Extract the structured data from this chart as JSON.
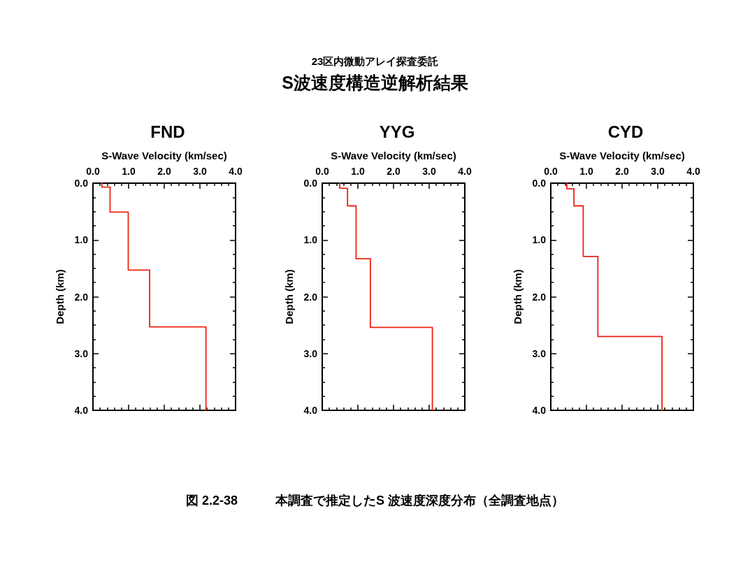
{
  "chart_data": [
    {
      "type": "other",
      "title": "23区内微動アレイ探査委託",
      "subtitle": "S波速度構造逆解析結果"
    },
    {
      "type": "line",
      "title": "FND",
      "xlabel": "S-Wave Velocity (km/sec)",
      "ylabel": "Depth (km)",
      "color": "#ee2211",
      "x": [
        0.25,
        0.25,
        0.48,
        0.48,
        0.99,
        0.99,
        1.59,
        1.59,
        3.17,
        3.17
      ],
      "values": [
        0,
        0.07,
        0.07,
        0.51,
        0.51,
        1.53,
        1.53,
        2.53,
        2.53,
        4.0
      ],
      "xlim": [
        0,
        4
      ],
      "ylim": [
        4,
        0
      ],
      "xticks": [
        {
          "value": 0,
          "label": "0.0"
        },
        {
          "value": 0.2,
          "label": null
        },
        {
          "value": 0.4,
          "label": null
        },
        {
          "value": 0.6,
          "label": null
        },
        {
          "value": 0.8,
          "label": null
        },
        {
          "value": 1,
          "label": "1.0"
        },
        {
          "value": 1.2,
          "label": null
        },
        {
          "value": 1.4,
          "label": null
        },
        {
          "value": 1.6,
          "label": null
        },
        {
          "value": 1.8,
          "label": null
        },
        {
          "value": 2,
          "label": "2.0"
        },
        {
          "value": 2.2,
          "label": null
        },
        {
          "value": 2.4,
          "label": null
        },
        {
          "value": 2.6,
          "label": null
        },
        {
          "value": 2.8,
          "label": null
        },
        {
          "value": 3,
          "label": "3.0"
        },
        {
          "value": 3.2,
          "label": null
        },
        {
          "value": 3.4,
          "label": null
        },
        {
          "value": 3.6,
          "label": null
        },
        {
          "value": 3.8,
          "label": null
        },
        {
          "value": 4,
          "label": "4.0"
        }
      ],
      "yticks": [
        {
          "value": 0,
          "label": "0.0"
        },
        {
          "value": 0.25,
          "label": null
        },
        {
          "value": 0.5,
          "label": null
        },
        {
          "value": 0.75,
          "label": null
        },
        {
          "value": 1,
          "label": "1.0"
        },
        {
          "value": 1.25,
          "label": null
        },
        {
          "value": 1.5,
          "label": null
        },
        {
          "value": 1.75,
          "label": null
        },
        {
          "value": 2,
          "label": "2.0"
        },
        {
          "value": 2.25,
          "label": null
        },
        {
          "value": 2.5,
          "label": null
        },
        {
          "value": 2.75,
          "label": null
        },
        {
          "value": 3,
          "label": "3.0"
        },
        {
          "value": 3.25,
          "label": null
        },
        {
          "value": 3.5,
          "label": null
        },
        {
          "value": 3.75,
          "label": null
        },
        {
          "value": 4,
          "label": "4.0"
        }
      ]
    },
    {
      "type": "line",
      "title": "YYG",
      "xlabel": "S-Wave Velocity (km/sec)",
      "ylabel": "Depth (km)",
      "color": "#ee2211",
      "x": [
        0.49,
        0.49,
        0.71,
        0.71,
        0.95,
        0.95,
        1.35,
        1.35,
        3.09,
        3.09
      ],
      "values": [
        0,
        0.09,
        0.09,
        0.4,
        0.4,
        1.33,
        1.33,
        2.54,
        2.54,
        4.0
      ],
      "xlim": [
        0,
        4
      ],
      "ylim": [
        4,
        0
      ],
      "xticks": [
        {
          "value": 0,
          "label": "0.0"
        },
        {
          "value": 0.2,
          "label": null
        },
        {
          "value": 0.4,
          "label": null
        },
        {
          "value": 0.6,
          "label": null
        },
        {
          "value": 0.8,
          "label": null
        },
        {
          "value": 1,
          "label": "1.0"
        },
        {
          "value": 1.2,
          "label": null
        },
        {
          "value": 1.4,
          "label": null
        },
        {
          "value": 1.6,
          "label": null
        },
        {
          "value": 1.8,
          "label": null
        },
        {
          "value": 2,
          "label": "2.0"
        },
        {
          "value": 2.2,
          "label": null
        },
        {
          "value": 2.4,
          "label": null
        },
        {
          "value": 2.6,
          "label": null
        },
        {
          "value": 2.8,
          "label": null
        },
        {
          "value": 3,
          "label": "3.0"
        },
        {
          "value": 3.2,
          "label": null
        },
        {
          "value": 3.4,
          "label": null
        },
        {
          "value": 3.6,
          "label": null
        },
        {
          "value": 3.8,
          "label": null
        },
        {
          "value": 4,
          "label": "4.0"
        }
      ],
      "yticks": [
        {
          "value": 0,
          "label": "0.0"
        },
        {
          "value": 0.25,
          "label": null
        },
        {
          "value": 0.5,
          "label": null
        },
        {
          "value": 0.75,
          "label": null
        },
        {
          "value": 1,
          "label": "1.0"
        },
        {
          "value": 1.25,
          "label": null
        },
        {
          "value": 1.5,
          "label": null
        },
        {
          "value": 1.75,
          "label": null
        },
        {
          "value": 2,
          "label": "2.0"
        },
        {
          "value": 2.25,
          "label": null
        },
        {
          "value": 2.5,
          "label": null
        },
        {
          "value": 2.75,
          "label": null
        },
        {
          "value": 3,
          "label": "3.0"
        },
        {
          "value": 3.25,
          "label": null
        },
        {
          "value": 3.5,
          "label": null
        },
        {
          "value": 3.75,
          "label": null
        },
        {
          "value": 4,
          "label": "4.0"
        }
      ]
    },
    {
      "type": "line",
      "title": "CYD",
      "xlabel": "S-Wave Velocity (km/sec)",
      "ylabel": "Depth (km)",
      "color": "#ee2211",
      "x": [
        0.45,
        0.45,
        0.65,
        0.65,
        0.91,
        0.91,
        1.32,
        1.32,
        3.12,
        3.12
      ],
      "values": [
        0,
        0.1,
        0.1,
        0.4,
        0.4,
        1.29,
        1.29,
        2.7,
        2.7,
        4.0
      ],
      "xlim": [
        0,
        4
      ],
      "ylim": [
        4,
        0
      ],
      "xticks": [
        {
          "value": 0,
          "label": "0.0"
        },
        {
          "value": 0.2,
          "label": null
        },
        {
          "value": 0.4,
          "label": null
        },
        {
          "value": 0.6,
          "label": null
        },
        {
          "value": 0.8,
          "label": null
        },
        {
          "value": 1,
          "label": "1.0"
        },
        {
          "value": 1.2,
          "label": null
        },
        {
          "value": 1.4,
          "label": null
        },
        {
          "value": 1.6,
          "label": null
        },
        {
          "value": 1.8,
          "label": null
        },
        {
          "value": 2,
          "label": "2.0"
        },
        {
          "value": 2.2,
          "label": null
        },
        {
          "value": 2.4,
          "label": null
        },
        {
          "value": 2.6,
          "label": null
        },
        {
          "value": 2.8,
          "label": null
        },
        {
          "value": 3,
          "label": "3.0"
        },
        {
          "value": 3.2,
          "label": null
        },
        {
          "value": 3.4,
          "label": null
        },
        {
          "value": 3.6,
          "label": null
        },
        {
          "value": 3.8,
          "label": null
        },
        {
          "value": 4,
          "label": "4.0"
        }
      ],
      "yticks": [
        {
          "value": 0,
          "label": "0.0"
        },
        {
          "value": 0.25,
          "label": null
        },
        {
          "value": 0.5,
          "label": null
        },
        {
          "value": 0.75,
          "label": null
        },
        {
          "value": 1,
          "label": "1.0"
        },
        {
          "value": 1.25,
          "label": null
        },
        {
          "value": 1.5,
          "label": null
        },
        {
          "value": 1.75,
          "label": null
        },
        {
          "value": 2,
          "label": "2.0"
        },
        {
          "value": 2.25,
          "label": null
        },
        {
          "value": 2.5,
          "label": null
        },
        {
          "value": 2.75,
          "label": null
        },
        {
          "value": 3,
          "label": "3.0"
        },
        {
          "value": 3.25,
          "label": null
        },
        {
          "value": 3.5,
          "label": null
        },
        {
          "value": 3.75,
          "label": null
        },
        {
          "value": 4,
          "label": "4.0"
        }
      ]
    },
    {
      "type": "other",
      "annotations": [
        "図 2.2-38　　　本調査で推定したS 波速度深度分布（全調査地点）"
      ]
    }
  ]
}
